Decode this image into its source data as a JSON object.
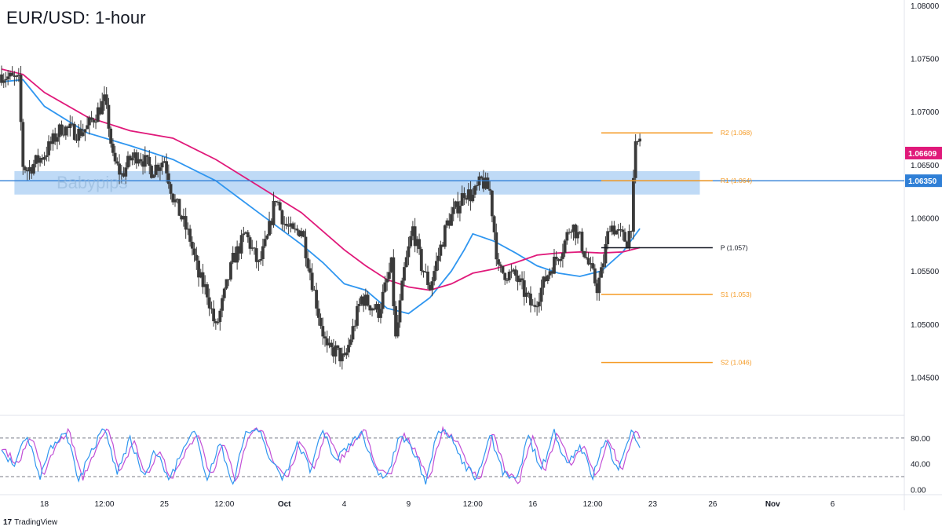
{
  "header": {
    "title": "EUR/USD: 1-hour"
  },
  "watermark": "Babypips",
  "branding": {
    "logo_glyph": "17",
    "name": "TradingView"
  },
  "colors": {
    "candle": "#3a3a3a",
    "ma_blue": "#2f96f0",
    "ma_pink": "#e0197a",
    "zone_fill": "#a9cdf3",
    "support_line": "#2f7fd6",
    "pivot_orange": "#f59a23",
    "pivot_black": "#131722",
    "price_tag": "#e0197a",
    "level_tag": "#2f7fd6",
    "stoch_k": "#2f96f0",
    "stoch_d": "#c14fd6"
  },
  "chart_data": [
    {
      "type": "candlestick",
      "title": "EUR/USD: 1-hour",
      "ylim": [
        1.0415,
        1.0805
      ],
      "y_ticks": [
        "1.08000",
        "1.07500",
        "1.07000",
        "1.06500",
        "1.06000",
        "1.05500",
        "1.05000",
        "1.04500"
      ],
      "y_tick_values": [
        1.08,
        1.075,
        1.07,
        1.065,
        1.06,
        1.055,
        1.05,
        1.045
      ],
      "x_ticks": [
        "18",
        "12:00",
        "25",
        "12:00",
        "Oct",
        "4",
        "9",
        "12:00",
        "16",
        "12:00",
        "23",
        "26",
        "Nov",
        "6"
      ],
      "x_tick_index": [
        10,
        24,
        38,
        52,
        66,
        80,
        95,
        110,
        124,
        138,
        152,
        166,
        180,
        194
      ],
      "x_range": [
        0,
        210
      ],
      "last_index": 149,
      "price_path": {
        "x": [
          0,
          4,
          5,
          6,
          10,
          14,
          18,
          20,
          24,
          25,
          26,
          28,
          30,
          32,
          35,
          38,
          40,
          44,
          46,
          48,
          50,
          54,
          57,
          60,
          62,
          64,
          66,
          68,
          70,
          74,
          76,
          78,
          80,
          84,
          88,
          91,
          92,
          94,
          96,
          98,
          100,
          104,
          107,
          108,
          110,
          112,
          114,
          116,
          120,
          124,
          128,
          131,
          133,
          135,
          137,
          139,
          140,
          142,
          144,
          146,
          147,
          148,
          149
        ],
        "y": [
          1.0735,
          1.0728,
          1.065,
          1.0645,
          1.066,
          1.0685,
          1.068,
          1.0685,
          1.071,
          1.0688,
          1.0655,
          1.064,
          1.0655,
          1.066,
          1.0645,
          1.0655,
          1.062,
          1.058,
          1.0545,
          1.053,
          1.0495,
          1.056,
          1.0585,
          1.0555,
          1.058,
          1.062,
          1.0595,
          1.0585,
          1.059,
          1.051,
          1.0475,
          1.0475,
          1.0465,
          1.0525,
          1.0512,
          1.0555,
          1.0485,
          1.055,
          1.059,
          1.0555,
          1.0535,
          1.0595,
          1.0615,
          1.0625,
          1.062,
          1.0635,
          1.0625,
          1.055,
          1.0545,
          1.0515,
          1.0552,
          1.0572,
          1.0595,
          1.058,
          1.0556,
          1.0535,
          1.0548,
          1.0595,
          1.0585,
          1.0578,
          1.0595,
          1.0665,
          1.0675
        ]
      },
      "moving_averages": [
        {
          "color": "#2f96f0",
          "x": [
            0,
            5,
            10,
            20,
            30,
            40,
            50,
            60,
            70,
            75,
            80,
            85,
            90,
            95,
            100,
            105,
            108,
            110,
            115,
            120,
            125,
            130,
            135,
            140,
            145,
            149
          ],
          "y": [
            1.0728,
            1.073,
            1.0705,
            1.068,
            1.0668,
            1.0655,
            1.0635,
            1.0605,
            1.0575,
            1.0558,
            1.0538,
            1.0532,
            1.0515,
            1.051,
            1.0525,
            1.055,
            1.057,
            1.0585,
            1.0578,
            1.0567,
            1.0555,
            1.0548,
            1.0545,
            1.055,
            1.0568,
            1.059
          ]
        },
        {
          "color": "#e0197a",
          "x": [
            0,
            5,
            10,
            20,
            30,
            40,
            50,
            60,
            70,
            80,
            85,
            90,
            95,
            100,
            105,
            110,
            115,
            120,
            125,
            130,
            135,
            140,
            145,
            149
          ],
          "y": [
            1.074,
            1.0735,
            1.0718,
            1.0695,
            1.0682,
            1.0675,
            1.0655,
            1.063,
            1.0605,
            1.057,
            1.0555,
            1.0542,
            1.0535,
            1.0532,
            1.0538,
            1.0548,
            1.0552,
            1.0558,
            1.0565,
            1.0567,
            1.0568,
            1.0567,
            1.0568,
            1.0572
          ]
        }
      ],
      "zone": {
        "from": 1.0622,
        "to": 1.0644,
        "x_start": 3,
        "x_end": 163
      },
      "horizontal_line": {
        "value": 1.0635,
        "label": "1.06350"
      },
      "pivots": [
        {
          "label": "R2 (1.068)",
          "value": 1.068,
          "color": "#f59a23"
        },
        {
          "label": "R1 (1.064)",
          "value": 1.0635,
          "color": "#f59a23"
        },
        {
          "label": "P (1.057)",
          "value": 1.0572,
          "color": "#131722"
        },
        {
          "label": "S1 (1.053)",
          "value": 1.0528,
          "color": "#f59a23"
        },
        {
          "label": "S2 (1.046)",
          "value": 1.0464,
          "color": "#f59a23"
        }
      ],
      "pivot_x_range": [
        140,
        166
      ],
      "price_tags": [
        {
          "label": "1.06609",
          "value": 1.0661,
          "color": "#e0197a"
        },
        {
          "label": "1.06350",
          "value": 1.0635,
          "color": "#2f7fd6"
        }
      ]
    },
    {
      "type": "line",
      "title": "",
      "ylim": [
        -8,
        114
      ],
      "y_ticks": [
        "80.00",
        "40.00",
        "0.00"
      ],
      "y_tick_values": [
        80,
        40,
        0
      ],
      "bands": [
        80,
        20
      ],
      "x_range": [
        0,
        210
      ],
      "last_index": 149,
      "series_path": {
        "x": [
          0,
          3,
          6,
          9,
          12,
          15,
          18,
          21,
          24,
          27,
          30,
          33,
          36,
          39,
          42,
          45,
          48,
          51,
          54,
          57,
          60,
          63,
          66,
          69,
          72,
          75,
          78,
          81,
          84,
          87,
          90,
          93,
          96,
          99,
          102,
          105,
          108,
          111,
          114,
          117,
          120,
          123,
          126,
          129,
          132,
          135,
          138,
          141,
          144,
          147,
          149
        ],
        "y": [
          60,
          40,
          85,
          22,
          70,
          92,
          15,
          60,
          95,
          25,
          80,
          20,
          60,
          15,
          55,
          90,
          20,
          70,
          10,
          88,
          95,
          40,
          18,
          75,
          30,
          90,
          45,
          70,
          92,
          30,
          20,
          85,
          60,
          15,
          92,
          80,
          40,
          15,
          88,
          25,
          12,
          82,
          30,
          90,
          40,
          70,
          20,
          80,
          25,
          95,
          70
        ]
      }
    }
  ]
}
